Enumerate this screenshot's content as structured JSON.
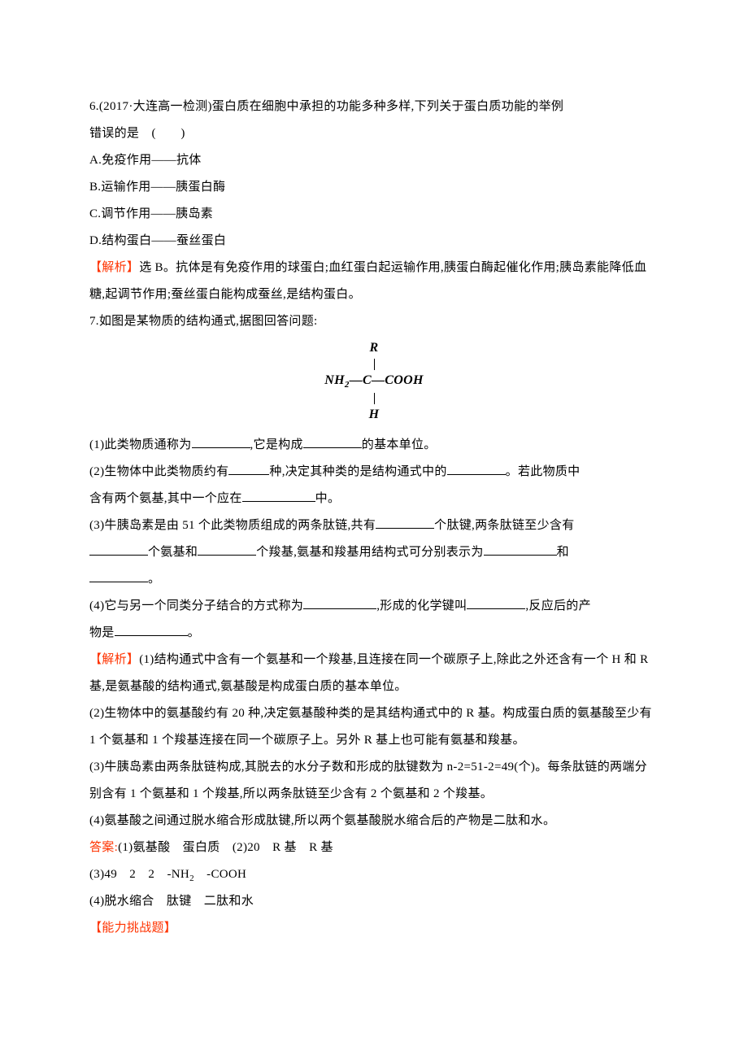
{
  "q6": {
    "stem": "6.(2017·大连高一检测)蛋白质在细胞中承担的功能多种多样,下列关于蛋白质功能的举例",
    "stem2": "错误的是　(　　)",
    "optA": "A.免疫作用——抗体",
    "optB": "B.运输作用——胰蛋白酶",
    "optC": "C.调节作用——胰岛素",
    "optD": "D.结构蛋白——蚕丝蛋白",
    "expl_label": "【解析】",
    "expl_body": "选 B。抗体是有免疫作用的球蛋白;血红蛋白起运输作用,胰蛋白酶起催化作用;胰岛素能降低血糖,起调节作用;蚕丝蛋白能构成蚕丝,是结构蛋白。"
  },
  "q7": {
    "stem": "7.如图是某物质的结构通式,据图回答问题:",
    "formula": {
      "top": "R",
      "mid_left": "NH",
      "mid_sub": "2",
      "mid_dash": "—",
      "mid_c": "C",
      "mid_right": "—COOH",
      "bot": "H"
    },
    "p1a": "(1)此类物质通称为",
    "p1b": ",它是构成",
    "p1c": "的基本单位。",
    "p2a": "(2)生物体中此类物质约有",
    "p2b": "种,决定其种类的是结构通式中的",
    "p2c": "。若此物质中",
    "p2d": "含有两个氨基,其中一个应在",
    "p2e": "中。",
    "p3a": "(3)牛胰岛素是由 51 个此类物质组成的两条肽链,共有",
    "p3b": "个肽键,两条肽链至少含有",
    "p3c": "个氨基和",
    "p3d": "个羧基,氨基和羧基用结构式可分别表示为",
    "p3e": "和",
    "p3f": "。",
    "p4a": "(4)它与另一个同类分子结合的方式称为",
    "p4b": ",形成的化学键叫",
    "p4c": ",反应后的产",
    "p4d": "物是",
    "p4e": "。",
    "expl_label": "【解析】",
    "expl1": "(1)结构通式中含有一个氨基和一个羧基,且连接在同一个碳原子上,除此之外还含有一个 H 和 R 基,是氨基酸的结构通式,氨基酸是构成蛋白质的基本单位。",
    "expl2": "(2)生物体中的氨基酸约有 20 种,决定氨基酸种类的是其结构通式中的 R 基。构成蛋白质的氨基酸至少有 1 个氨基和 1 个羧基连接在同一个碳原子上。另外 R 基上也可能有氨基和羧基。",
    "expl3": "(3)牛胰岛素由两条肽链构成,其脱去的水分子数和形成的肽键数为 n-2=51-2=49(个)。每条肽链的两端分别含有 1 个氨基和 1 个羧基,所以两条肽链至少含有 2 个氨基和 2 个羧基。",
    "expl4": "(4)氨基酸之间通过脱水缩合形成肽键,所以两个氨基酸脱水缩合后的产物是二肽和水。",
    "ans_label": "答案:",
    "ans1": "(1)氨基酸　蛋白质　(2)20　R 基　R 基",
    "ans2a": "(3)49　2　2　-NH",
    "ans2sub": "2",
    "ans2b": "　-COOH",
    "ans3": "(4)脱水缩合　肽键　二肽和水"
  },
  "challenge_label": "【能力挑战题】"
}
